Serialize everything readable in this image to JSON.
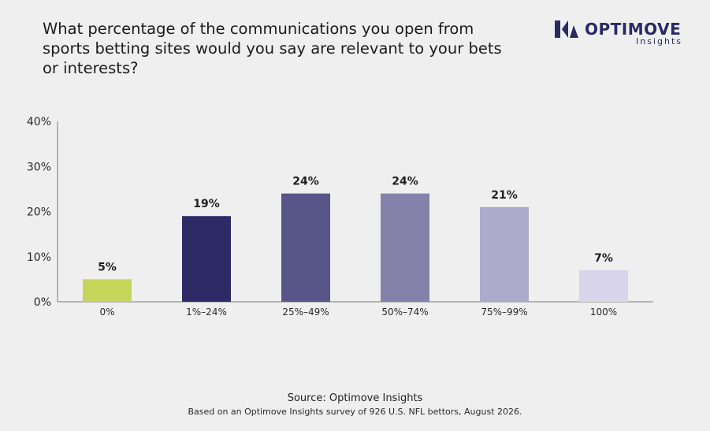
{
  "header": {
    "title": "What percentage of the communications you open from sports betting sites would you say are relevant to your bets or interests?"
  },
  "logo": {
    "name": "OPTIMOVE",
    "sub": "Insights",
    "color": "#2b2a63"
  },
  "chart_data": {
    "type": "bar",
    "title": "What percentage of the communications you open from sports betting sites would you say are relevant to your bets or interests?",
    "categories": [
      "0%",
      "1%–24%",
      "25%–49%",
      "50%–74%",
      "75%–99%",
      "100%"
    ],
    "values": [
      5,
      19,
      24,
      24,
      21,
      7
    ],
    "value_labels": [
      "5%",
      "19%",
      "24%",
      "24%",
      "21%",
      "7%"
    ],
    "colors": [
      "#c3d65a",
      "#2e2a66",
      "#585588",
      "#8482ab",
      "#aeaacb",
      "#d8d5ea"
    ],
    "ylim": [
      0,
      40
    ],
    "yticks": [
      0,
      10,
      20,
      30,
      40
    ],
    "ytick_labels": [
      "0%",
      "10%",
      "20%",
      "30%",
      "40%"
    ],
    "xlabel": "",
    "ylabel": "",
    "grid": false,
    "legend": "none"
  },
  "footer": {
    "source": "Source: Optimove Insights",
    "note": "Based on an Optimove Insights survey of 926 U.S. NFL bettors, August 2026."
  }
}
